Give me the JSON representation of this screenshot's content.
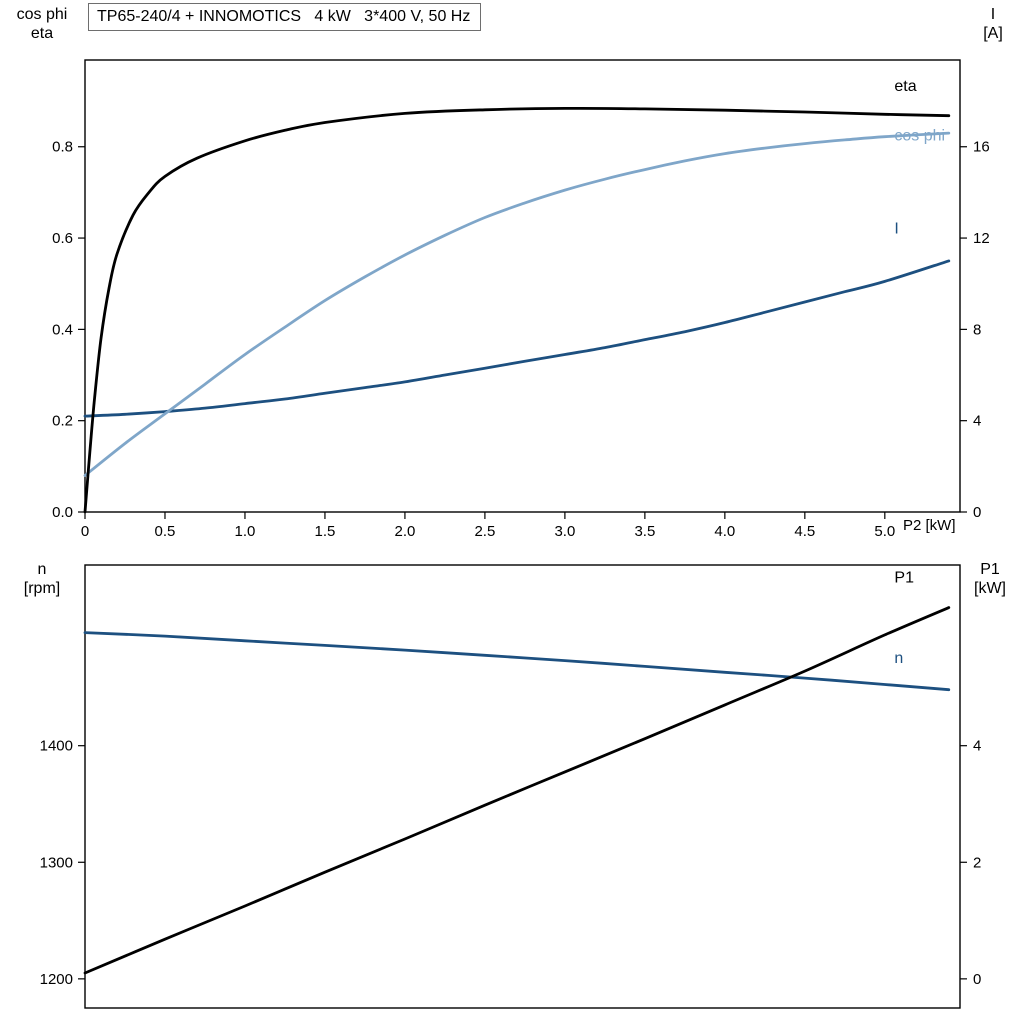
{
  "title": "TP65-240/4 + INNOMOTICS   4 kW   3*400 V, 50 Hz",
  "colors": {
    "black": "#000000",
    "light_blue": "#7fa6c9",
    "dark_blue": "#1d5080",
    "axis": "#000000",
    "background": "#ffffff"
  },
  "chart_data": [
    {
      "type": "line",
      "position": "upper",
      "grid": false,
      "legend_position": "curve-end-labels",
      "x_axis": {
        "label": "P2 [kW]",
        "min": 0,
        "max": 5.47,
        "ticks": [
          0,
          0.5,
          1,
          1.5,
          2,
          2.5,
          3,
          3.5,
          4,
          4.5,
          5
        ],
        "tick_labels": [
          "0",
          "0.5",
          "1.0",
          "1.5",
          "2.0",
          "2.5",
          "3.0",
          "3.5",
          "4.0",
          "4.5",
          "5.0"
        ]
      },
      "y_left": {
        "label_lines": [
          "cos phi",
          "eta"
        ],
        "min": 0,
        "max": 0.99,
        "ticks": [
          0,
          0.2,
          0.4,
          0.6,
          0.8
        ],
        "tick_labels": [
          "0.0",
          "0.2",
          "0.4",
          "0.6",
          "0.8"
        ]
      },
      "y_right": {
        "label_lines": [
          "I",
          "[A]"
        ],
        "min": 0,
        "max": 19.8,
        "ticks": [
          0,
          4,
          8,
          12,
          16
        ],
        "tick_labels": [
          "0",
          "4",
          "8",
          "12",
          "16"
        ]
      },
      "series": [
        {
          "name": "I",
          "label": "I",
          "axis": "right",
          "color_key": "dark_blue",
          "label_at": [
            5.06,
            12.2
          ],
          "x": [
            0,
            0.25,
            0.5,
            0.75,
            1,
            1.25,
            1.5,
            1.75,
            2,
            2.25,
            2.5,
            2.75,
            3,
            3.25,
            3.5,
            3.75,
            4,
            4.25,
            4.5,
            4.75,
            5,
            5.4
          ],
          "y": [
            4.2,
            4.28,
            4.4,
            4.55,
            4.75,
            4.95,
            5.2,
            5.45,
            5.7,
            6.0,
            6.3,
            6.6,
            6.9,
            7.2,
            7.55,
            7.9,
            8.3,
            8.75,
            9.2,
            9.65,
            10.1,
            11.0
          ]
        },
        {
          "name": "cos phi",
          "label": "cos phi",
          "axis": "left",
          "color_key": "light_blue",
          "label_at": [
            5.06,
            0.814
          ],
          "x": [
            0,
            0.25,
            0.5,
            0.75,
            1,
            1.25,
            1.5,
            1.75,
            2,
            2.25,
            2.5,
            2.75,
            3,
            3.25,
            3.5,
            3.75,
            4,
            4.25,
            4.5,
            4.75,
            5,
            5.4
          ],
          "y": [
            0.08,
            0.15,
            0.215,
            0.28,
            0.345,
            0.405,
            0.463,
            0.515,
            0.563,
            0.606,
            0.645,
            0.677,
            0.705,
            0.729,
            0.75,
            0.769,
            0.785,
            0.797,
            0.807,
            0.815,
            0.822,
            0.83
          ]
        },
        {
          "name": "eta",
          "label": "eta",
          "axis": "left",
          "color_key": "black",
          "label_at": [
            5.06,
            0.922
          ],
          "x": [
            0,
            0.03,
            0.06,
            0.1,
            0.15,
            0.2,
            0.3,
            0.4,
            0.5,
            0.7,
            1,
            1.25,
            1.5,
            2,
            2.5,
            3,
            3.5,
            4,
            4.5,
            5,
            5.4
          ],
          "y": [
            0,
            0.13,
            0.25,
            0.38,
            0.49,
            0.565,
            0.65,
            0.7,
            0.735,
            0.775,
            0.813,
            0.836,
            0.853,
            0.873,
            0.881,
            0.884,
            0.883,
            0.88,
            0.876,
            0.871,
            0.868
          ]
        }
      ]
    },
    {
      "type": "line",
      "position": "lower",
      "grid": false,
      "legend_position": "curve-end-labels",
      "x_axis": {
        "label": "",
        "min": 0,
        "max": 5.47,
        "ticks": [],
        "tick_labels": []
      },
      "y_left": {
        "label_lines": [
          "n",
          "[rpm]"
        ],
        "min": 1175,
        "max": 1555,
        "ticks": [
          1200,
          1300,
          1400
        ],
        "tick_labels": [
          "1200",
          "1300",
          "1400"
        ]
      },
      "y_right": {
        "label_lines": [
          "P1",
          "[kW]"
        ],
        "min": -0.5,
        "max": 7.1,
        "ticks": [
          0,
          2,
          4
        ],
        "tick_labels": [
          "0",
          "2",
          "4"
        ]
      },
      "series": [
        {
          "name": "n",
          "label": "n",
          "axis": "left",
          "color_key": "dark_blue",
          "label_at": [
            5.06,
            1471
          ],
          "x": [
            0,
            0.5,
            1,
            1.5,
            2,
            2.5,
            3,
            3.5,
            4,
            4.5,
            5,
            5.4
          ],
          "y": [
            1497,
            1494,
            1490,
            1486,
            1482,
            1477.5,
            1473,
            1468,
            1463,
            1458,
            1452.5,
            1448
          ]
        },
        {
          "name": "P1",
          "label": "P1",
          "axis": "right",
          "color_key": "black",
          "label_at": [
            5.06,
            6.8
          ],
          "x": [
            0,
            0.5,
            1,
            1.5,
            2,
            2.5,
            3,
            3.5,
            4,
            4.5,
            5,
            5.4
          ],
          "y": [
            0.1,
            0.68,
            1.25,
            1.83,
            2.4,
            2.98,
            3.55,
            4.12,
            4.7,
            5.28,
            5.9,
            6.37
          ]
        }
      ]
    }
  ]
}
